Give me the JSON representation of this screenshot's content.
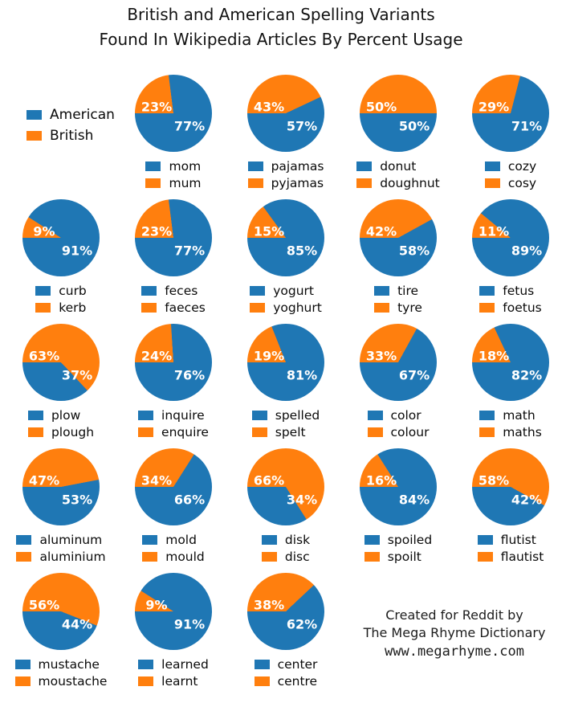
{
  "title": {
    "line1": "British and American Spelling Variants",
    "line2": "Found In Wikipedia Articles By Percent Usage"
  },
  "legend": {
    "american_label": "American",
    "british_label": "British"
  },
  "colors": {
    "american_blue": "#1f77b4",
    "british_orange": "#ff7f0e"
  },
  "credit": {
    "line1": "Created for Reddit by",
    "line2": "The Mega Rhyme Dictionary",
    "line3": "www.megarhyme.com"
  },
  "chart_data": {
    "type": "pie",
    "title": "British and American Spelling Variants Found In Wikipedia Articles By Percent Usage",
    "legend_entries": [
      "American",
      "British"
    ],
    "legend_position": "top-left",
    "value_unit": "percent",
    "wedge_layout": "British wedge starts at left horizontal (9 o'clock) and sweeps clockwise over the top",
    "pies": [
      {
        "row": 1,
        "col": 2,
        "american_word": "mom",
        "british_word": "mum",
        "american_pct": 77,
        "british_pct": 23
      },
      {
        "row": 1,
        "col": 3,
        "american_word": "pajamas",
        "british_word": "pyjamas",
        "american_pct": 57,
        "british_pct": 43
      },
      {
        "row": 1,
        "col": 4,
        "american_word": "donut",
        "british_word": "doughnut",
        "american_pct": 50,
        "british_pct": 50
      },
      {
        "row": 1,
        "col": 5,
        "american_word": "cozy",
        "british_word": "cosy",
        "american_pct": 71,
        "british_pct": 29
      },
      {
        "row": 2,
        "col": 1,
        "american_word": "curb",
        "british_word": "kerb",
        "american_pct": 91,
        "british_pct": 9
      },
      {
        "row": 2,
        "col": 2,
        "american_word": "feces",
        "british_word": "faeces",
        "american_pct": 77,
        "british_pct": 23
      },
      {
        "row": 2,
        "col": 3,
        "american_word": "yogurt",
        "british_word": "yoghurt",
        "american_pct": 85,
        "british_pct": 15
      },
      {
        "row": 2,
        "col": 4,
        "american_word": "tire",
        "british_word": "tyre",
        "american_pct": 58,
        "british_pct": 42
      },
      {
        "row": 2,
        "col": 5,
        "american_word": "fetus",
        "british_word": "foetus",
        "american_pct": 89,
        "british_pct": 11
      },
      {
        "row": 3,
        "col": 1,
        "american_word": "plow",
        "british_word": "plough",
        "american_pct": 37,
        "british_pct": 63
      },
      {
        "row": 3,
        "col": 2,
        "american_word": "inquire",
        "british_word": "enquire",
        "american_pct": 76,
        "british_pct": 24
      },
      {
        "row": 3,
        "col": 3,
        "american_word": "spelled",
        "british_word": "spelt",
        "american_pct": 81,
        "british_pct": 19
      },
      {
        "row": 3,
        "col": 4,
        "american_word": "color",
        "british_word": "colour",
        "american_pct": 67,
        "british_pct": 33
      },
      {
        "row": 3,
        "col": 5,
        "american_word": "math",
        "british_word": "maths",
        "american_pct": 82,
        "british_pct": 18
      },
      {
        "row": 4,
        "col": 1,
        "american_word": "aluminum",
        "british_word": "aluminium",
        "american_pct": 53,
        "british_pct": 47
      },
      {
        "row": 4,
        "col": 2,
        "american_word": "mold",
        "british_word": "mould",
        "american_pct": 66,
        "british_pct": 34
      },
      {
        "row": 4,
        "col": 3,
        "american_word": "disk",
        "british_word": "disc",
        "american_pct": 34,
        "british_pct": 66
      },
      {
        "row": 4,
        "col": 4,
        "american_word": "spoiled",
        "british_word": "spoilt",
        "american_pct": 84,
        "british_pct": 16
      },
      {
        "row": 4,
        "col": 5,
        "american_word": "flutist",
        "british_word": "flautist",
        "american_pct": 42,
        "british_pct": 58
      },
      {
        "row": 5,
        "col": 1,
        "american_word": "mustache",
        "british_word": "moustache",
        "american_pct": 44,
        "british_pct": 56
      },
      {
        "row": 5,
        "col": 2,
        "american_word": "learned",
        "british_word": "learnt",
        "american_pct": 91,
        "british_pct": 9
      },
      {
        "row": 5,
        "col": 3,
        "american_word": "center",
        "british_word": "centre",
        "american_pct": 62,
        "british_pct": 38
      }
    ]
  }
}
